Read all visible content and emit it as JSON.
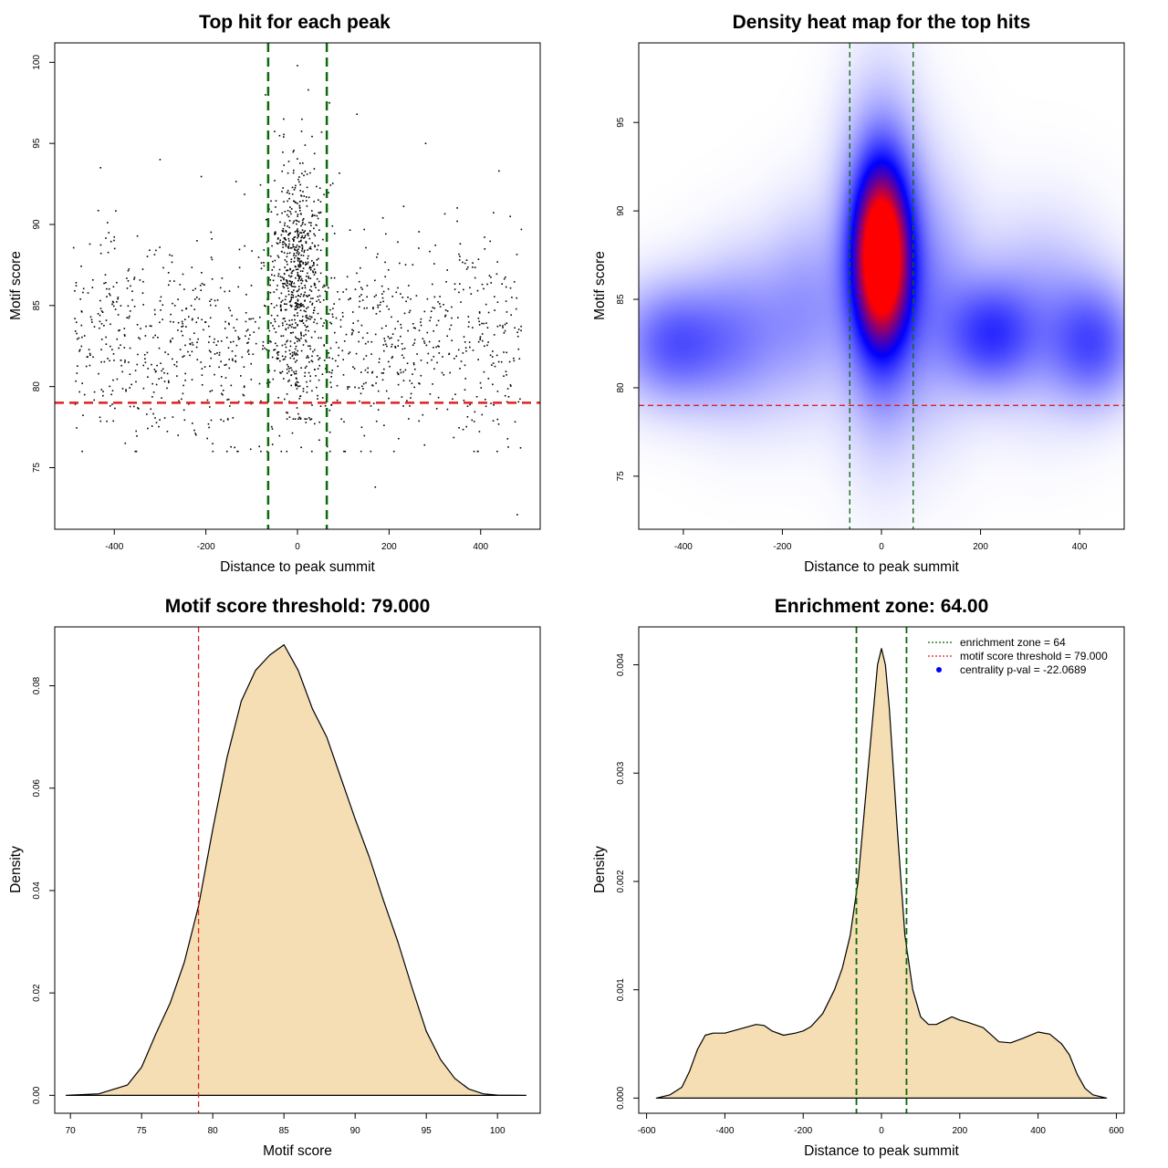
{
  "colors": {
    "scatter_point": "#000000",
    "threshold_line": "#dd2222",
    "zone_line": "#0a6a0a",
    "density_fill": "#f5deb3",
    "heat_low": "#ffffff",
    "heat_mid": "#0000ff",
    "heat_high": "#ff0000"
  },
  "chart_data": [
    {
      "id": "scatter",
      "type": "scatter",
      "title": "Top hit for each peak",
      "xlabel": "Distance to peak summit",
      "ylabel": "Motif score",
      "xlim": [
        -530,
        530
      ],
      "ylim": [
        71.2,
        101.2
      ],
      "xticks": [
        -400,
        -200,
        0,
        200,
        400
      ],
      "yticks": [
        75,
        80,
        85,
        90,
        95,
        100
      ],
      "threshold_y": 79,
      "zone_x": [
        -64,
        64
      ],
      "points_estimate": {
        "background": {
          "n": 1150,
          "x_range": [
            -490,
            490
          ],
          "y_mean": 83,
          "y_sd": 3.2
        },
        "central": {
          "n": 650,
          "x_mean": 0,
          "x_sd": 28,
          "y_mean": 87,
          "y_sd": 3.8
        },
        "outliers": [
          [
            -70,
            98
          ],
          [
            -30,
            96.5
          ],
          [
            0,
            99.8
          ],
          [
            70,
            97.5
          ],
          [
            130,
            96.8
          ],
          [
            170,
            73.8
          ],
          [
            480,
            72.1
          ],
          [
            -430,
            93.5
          ],
          [
            -300,
            94
          ],
          [
            280,
            95
          ],
          [
            440,
            93.3
          ]
        ]
      }
    },
    {
      "id": "heatmap",
      "type": "heatmap",
      "title": "Density heat map for the top hits",
      "xlabel": "Distance to peak summit",
      "ylabel": "Motif score",
      "xlim": [
        -490,
        490
      ],
      "ylim": [
        72,
        99.5
      ],
      "xticks": [
        -400,
        -200,
        0,
        200,
        400
      ],
      "yticks": [
        75,
        80,
        85,
        90,
        95
      ],
      "threshold_y": 79,
      "zone_x": [
        -64,
        64
      ],
      "density_components": [
        {
          "x": 0,
          "y": 87.5,
          "sx": 36,
          "sy": 3.2,
          "w": 1.0
        },
        {
          "x": 0,
          "y": 87.0,
          "sx": 55,
          "sy": 5.5,
          "w": 0.42
        },
        {
          "x": -420,
          "y": 82.5,
          "sx": 75,
          "sy": 2.2,
          "w": 0.3
        },
        {
          "x": 220,
          "y": 83,
          "sx": 60,
          "sy": 2.0,
          "w": 0.3
        },
        {
          "x": 430,
          "y": 82.5,
          "sx": 60,
          "sy": 2.2,
          "w": 0.28
        },
        {
          "x": -280,
          "y": 83,
          "sx": 70,
          "sy": 3.0,
          "w": 0.18
        },
        {
          "x": 320,
          "y": 84,
          "sx": 90,
          "sy": 3.5,
          "w": 0.15
        },
        {
          "x": -150,
          "y": 84.5,
          "sx": 60,
          "sy": 3.5,
          "w": 0.15
        },
        {
          "x": 110,
          "y": 85,
          "sx": 60,
          "sy": 4.5,
          "w": 0.15
        }
      ]
    },
    {
      "id": "score-density",
      "type": "area",
      "title": "Motif score threshold: 79.000",
      "xlabel": "Motif score",
      "ylabel": "Density",
      "xlim": [
        68.9,
        103
      ],
      "ylim": [
        -0.0035,
        0.0915
      ],
      "xticks": [
        70,
        75,
        80,
        85,
        90,
        95,
        100
      ],
      "yticks": [
        0.0,
        0.02,
        0.04,
        0.06,
        0.08
      ],
      "ytick_labels": [
        "0.00",
        "0.02",
        "0.04",
        "0.06",
        "0.08"
      ],
      "threshold_x": 79,
      "x": [
        69.7,
        72,
        74,
        75,
        76,
        77,
        78,
        79,
        80,
        81,
        82,
        83,
        84,
        85,
        86,
        87,
        88,
        89,
        90,
        91,
        92,
        93,
        94,
        95,
        96,
        97,
        98,
        99,
        100,
        102
      ],
      "y": [
        0.0,
        0.0003,
        0.002,
        0.0055,
        0.012,
        0.018,
        0.026,
        0.037,
        0.052,
        0.066,
        0.077,
        0.083,
        0.086,
        0.088,
        0.083,
        0.0755,
        0.07,
        0.062,
        0.054,
        0.0465,
        0.038,
        0.03,
        0.021,
        0.0125,
        0.007,
        0.0033,
        0.0012,
        0.0003,
        5e-05,
        0.0
      ]
    },
    {
      "id": "distance-density",
      "type": "area",
      "title": "Enrichment zone: 64.00",
      "xlabel": "Distance to peak summit",
      "ylabel": "Density",
      "xlim": [
        -620,
        620
      ],
      "ylim": [
        -0.00014,
        0.00435
      ],
      "xticks": [
        -600,
        -400,
        -200,
        0,
        200,
        400,
        600
      ],
      "yticks": [
        0.0,
        0.001,
        0.002,
        0.003,
        0.004
      ],
      "ytick_labels": [
        "0.000",
        "0.001",
        "0.002",
        "0.003",
        "0.004"
      ],
      "zone_x": [
        -64,
        64
      ],
      "x": [
        -575,
        -540,
        -510,
        -490,
        -470,
        -450,
        -430,
        -400,
        -360,
        -320,
        -300,
        -280,
        -250,
        -220,
        -200,
        -180,
        -150,
        -120,
        -100,
        -80,
        -60,
        -40,
        -20,
        -10,
        0,
        10,
        20,
        40,
        60,
        80,
        100,
        120,
        140,
        180,
        200,
        220,
        260,
        300,
        330,
        360,
        400,
        430,
        460,
        480,
        500,
        520,
        540,
        575
      ],
      "y": [
        0.0,
        3e-05,
        0.0001,
        0.00025,
        0.00045,
        0.00058,
        0.0006,
        0.0006,
        0.00064,
        0.00068,
        0.00067,
        0.00062,
        0.00058,
        0.0006,
        0.00062,
        0.00066,
        0.00078,
        0.001,
        0.0012,
        0.0015,
        0.002,
        0.0028,
        0.0036,
        0.004,
        0.00415,
        0.004,
        0.0036,
        0.0025,
        0.0015,
        0.001,
        0.00075,
        0.00068,
        0.00068,
        0.00075,
        0.00072,
        0.0007,
        0.00065,
        0.00052,
        0.00051,
        0.00055,
        0.00061,
        0.00059,
        0.0005,
        0.0004,
        0.00022,
        9e-05,
        3e-05,
        0.0
      ],
      "legend": {
        "placement": "top-right",
        "entries": [
          {
            "label": "enrichment zone = 64",
            "style": "dotted-line",
            "color": "#0a6a0a"
          },
          {
            "label": "motif score threshold = 79.000",
            "style": "dotted-line",
            "color": "#dd2222"
          },
          {
            "label": "centrality p-val = -22.0689",
            "style": "point",
            "color": "#0000ff"
          }
        ]
      }
    }
  ]
}
